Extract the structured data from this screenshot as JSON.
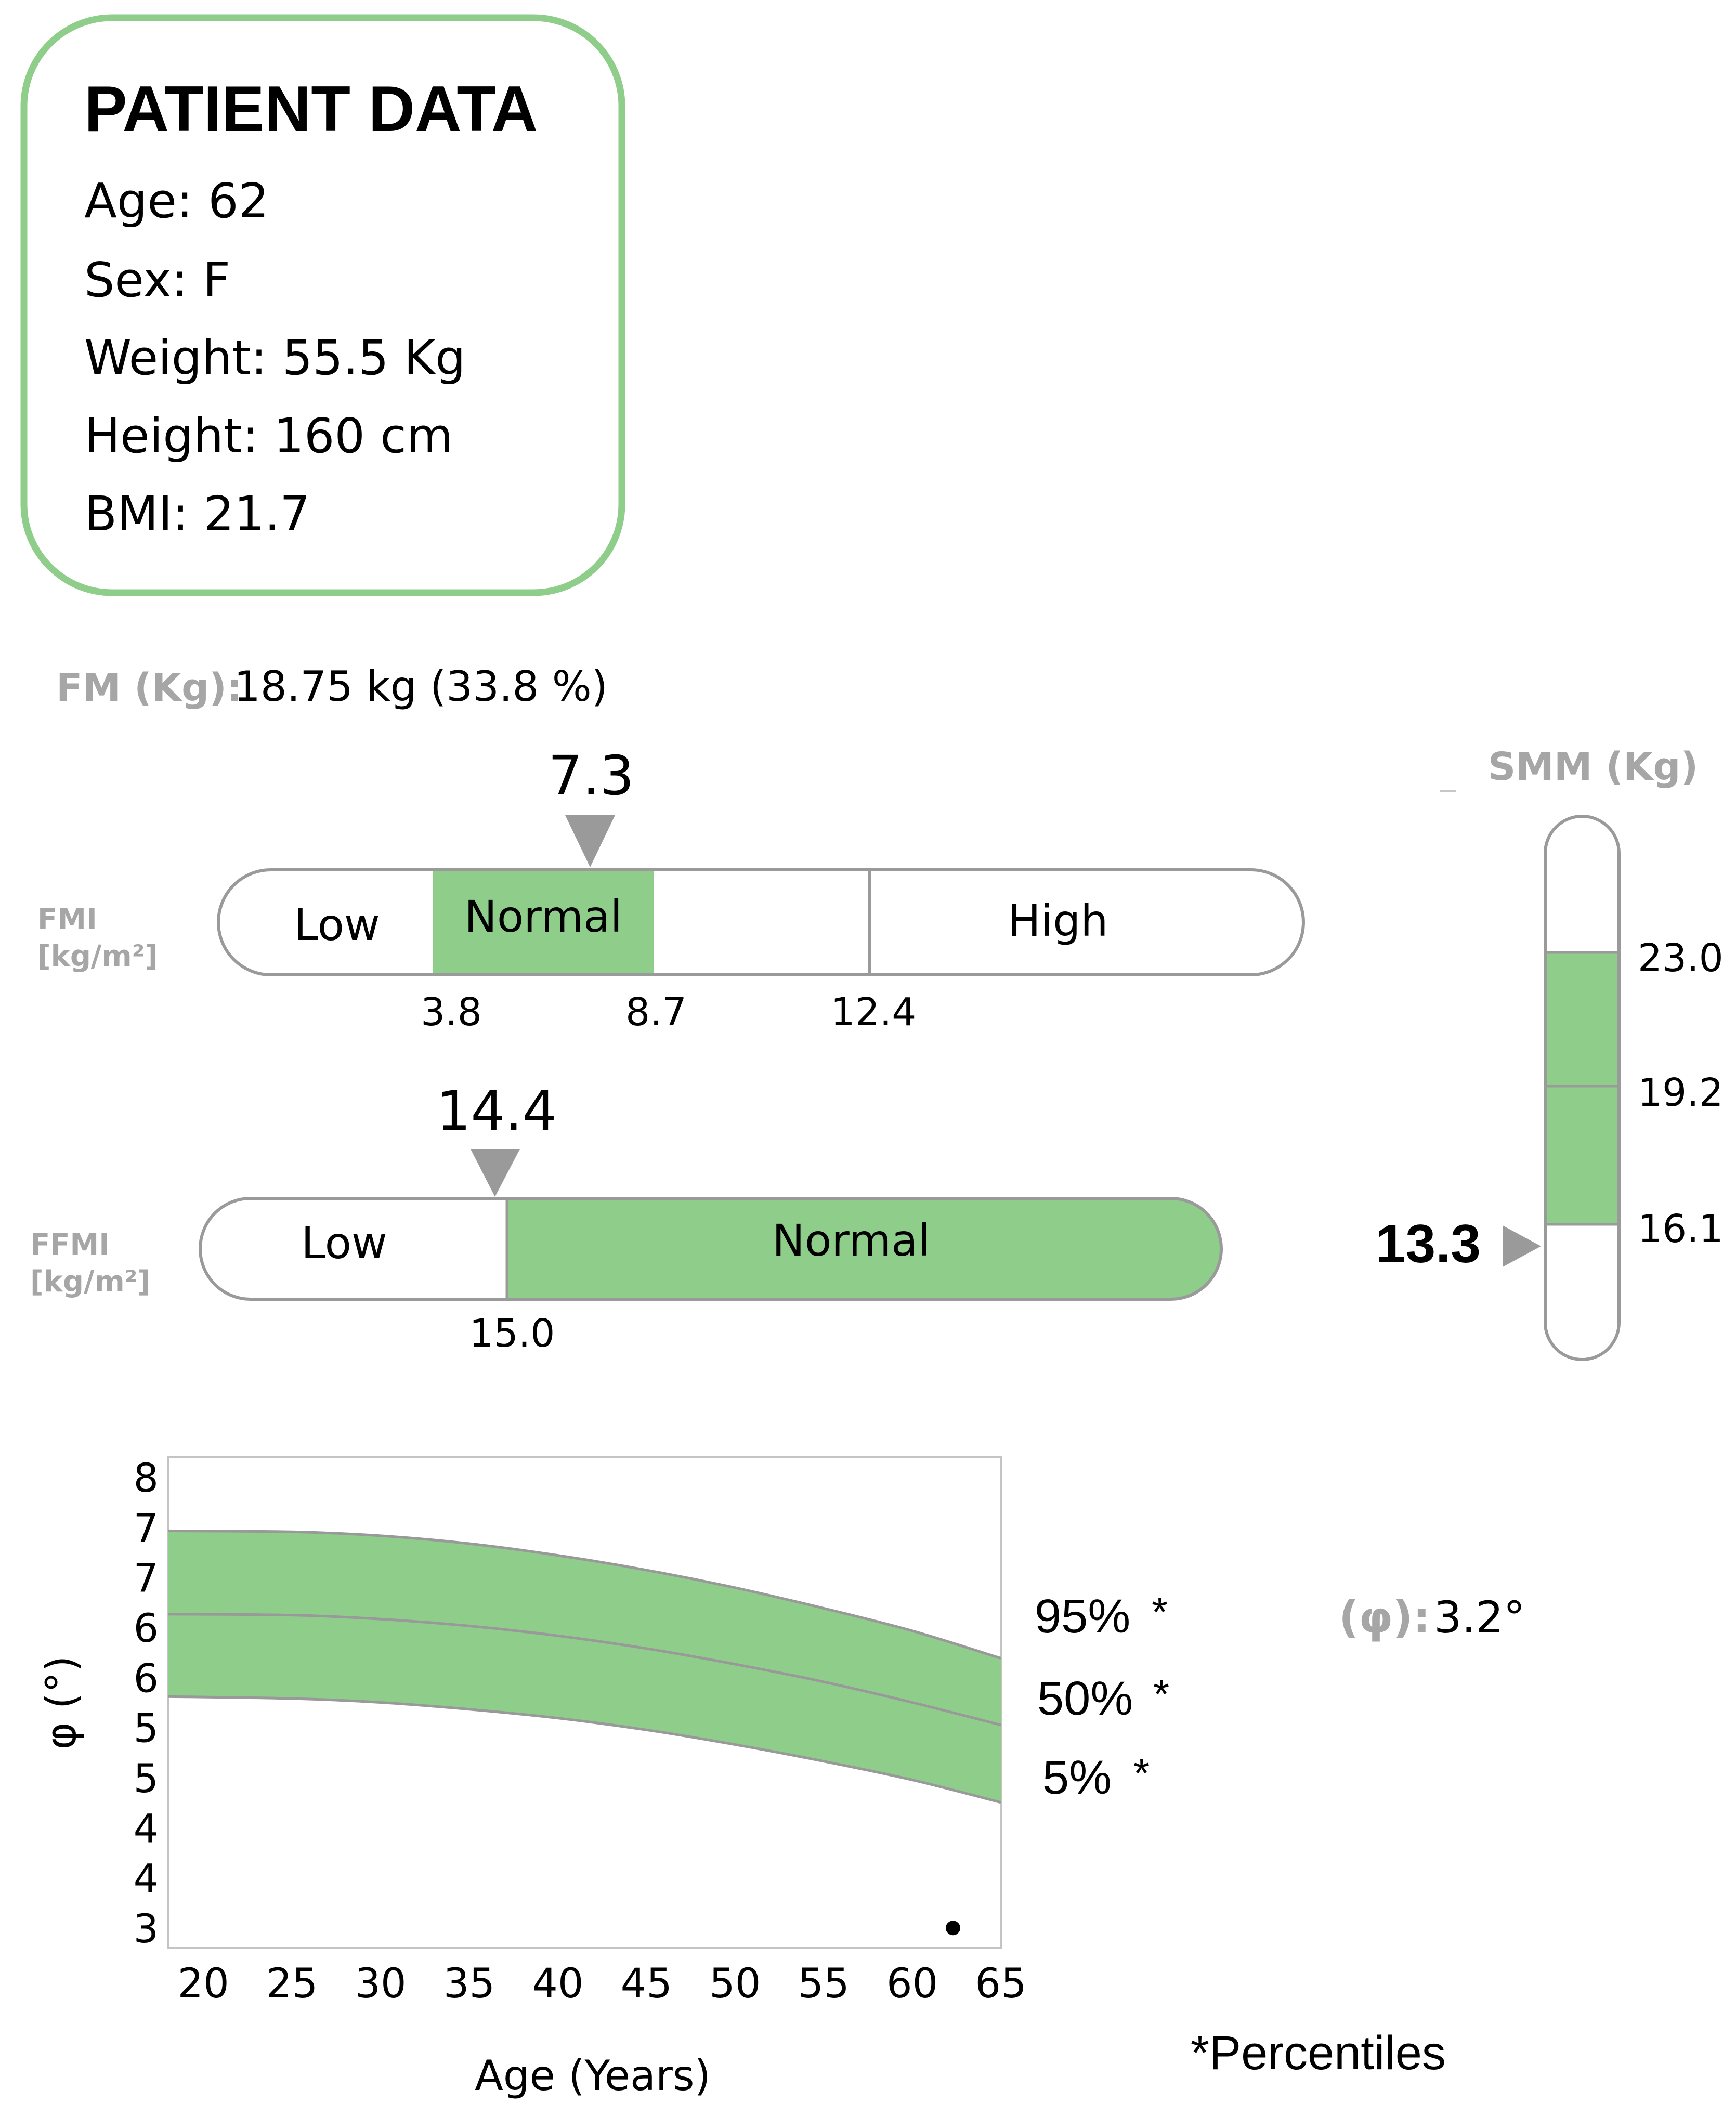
{
  "patient": {
    "title": "PATIENT DATA",
    "lines": [
      "Age: 62",
      "Sex: F",
      "Weight: 55.5 Kg",
      "Height: 160 cm",
      "BMI: 21.7"
    ]
  },
  "fm": {
    "label": "FM (Kg):",
    "value": "18.75 kg (33.8 %)"
  },
  "fmi": {
    "label_line1": "FMI",
    "label_line2": "[kg/m²]",
    "marker_value": "7.3",
    "marker": 7.3,
    "band_labels": {
      "low": "Low",
      "normal": "Normal",
      "high": "High"
    },
    "thresholds": [
      "3.8",
      "8.7",
      "12.4"
    ]
  },
  "ffmi": {
    "label_line1": "FFMI",
    "label_line2": "[kg/m²]",
    "marker_value": "14.4",
    "marker": 14.4,
    "band_labels": {
      "low": "Low",
      "normal": "Normal"
    },
    "thresholds": [
      "15.0"
    ]
  },
  "smm": {
    "label": "SMM (Kg)",
    "marker_value": "13.3",
    "marker": 13.3,
    "thresholds": [
      "23.0",
      "19.2",
      "16.1"
    ]
  },
  "phase": {
    "label": "(φ):",
    "value": "3.2°",
    "percentile_labels": [
      "95%",
      "50%",
      "5%"
    ],
    "asterisk": "*",
    "footnote": "*Percentiles"
  },
  "chart_data": [
    {
      "type": "line",
      "xlabel": "Age (Years)",
      "ylabel": "φ (°)",
      "xlim": [
        18,
        65
      ],
      "ylim": [
        3,
        8
      ],
      "x_ticks": [
        20,
        25,
        30,
        35,
        40,
        45,
        50,
        55,
        60,
        65
      ],
      "y_tick_labels": [
        "8",
        "7",
        "7",
        "6",
        "6",
        "5",
        "5",
        "4",
        "4",
        "3"
      ],
      "grid": false,
      "series": [
        {
          "name": "95%",
          "x": [
            18,
            25,
            30,
            35,
            40,
            45,
            50,
            55,
            60,
            65
          ],
          "y": [
            7.25,
            7.24,
            7.2,
            7.12,
            7.0,
            6.85,
            6.67,
            6.46,
            6.23,
            5.95
          ]
        },
        {
          "name": "50%",
          "x": [
            18,
            25,
            30,
            35,
            40,
            45,
            50,
            55,
            60,
            65
          ],
          "y": [
            6.4,
            6.39,
            6.35,
            6.28,
            6.18,
            6.05,
            5.89,
            5.71,
            5.5,
            5.27
          ]
        },
        {
          "name": "5%",
          "x": [
            18,
            25,
            30,
            35,
            40,
            45,
            50,
            55,
            60,
            65
          ],
          "y": [
            5.56,
            5.54,
            5.5,
            5.43,
            5.34,
            5.22,
            5.07,
            4.9,
            4.71,
            4.48
          ]
        }
      ],
      "points": [
        {
          "x": 62.3,
          "y": 3.2
        }
      ],
      "colors": {
        "band": "#8fcd8b",
        "line": "#999999",
        "point": "#000000"
      }
    }
  ],
  "colors": {
    "box_border": "#8fcd8b",
    "normal_fill": "#8fcd8b",
    "muted_label": "#a6a6a6",
    "bar_border": "#9a9a9a",
    "marker": "#9a9a9a"
  }
}
